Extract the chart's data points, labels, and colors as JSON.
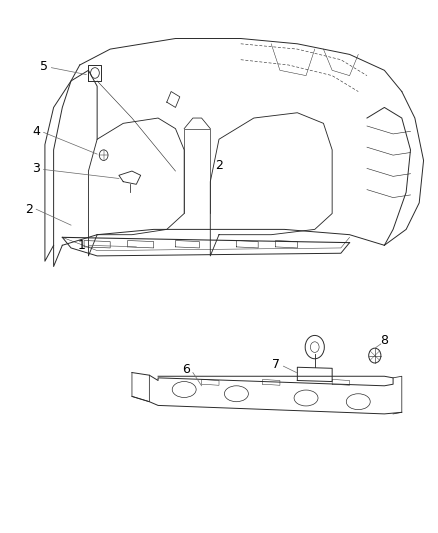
{
  "background_color": "#ffffff",
  "line_color": "#2a2a2a",
  "callout_font_size": 9,
  "fig_width": 4.38,
  "fig_height": 5.33,
  "dpi": 100
}
